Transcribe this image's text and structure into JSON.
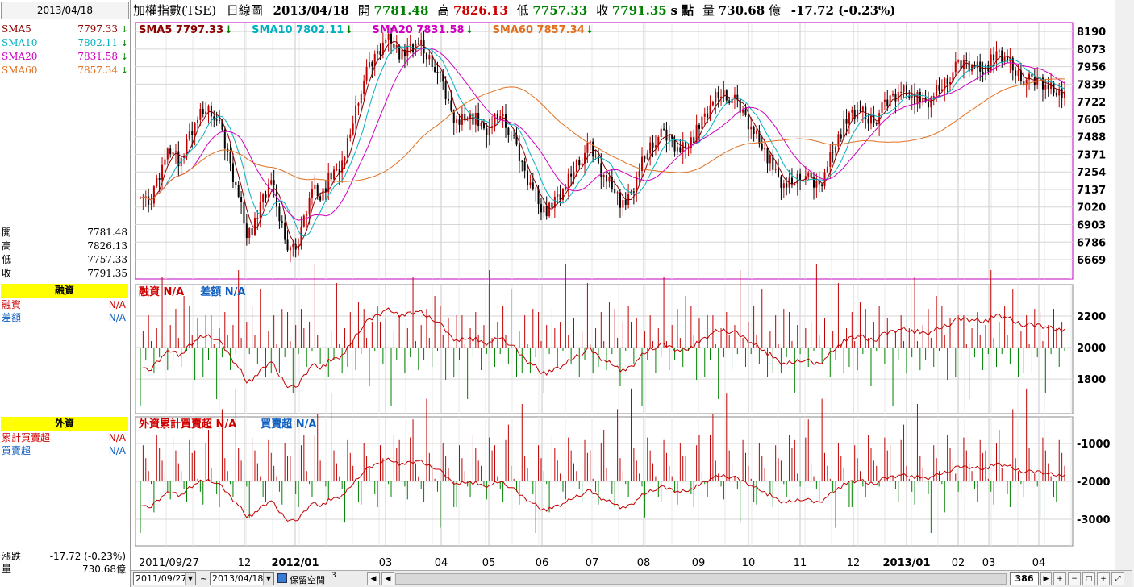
{
  "left_panel": {
    "date": "2013/04/18",
    "sma": [
      {
        "name": "SMA5",
        "value": "7797.33",
        "color": "#8b0000"
      },
      {
        "name": "SMA10",
        "value": "7802.11",
        "color": "#00b0c0"
      },
      {
        "name": "SMA20",
        "value": "7831.58",
        "color": "#d000c0"
      },
      {
        "name": "SMA60",
        "value": "7857.34",
        "color": "#e07020"
      }
    ],
    "ohlc": [
      {
        "name": "開",
        "value": "7781.48"
      },
      {
        "name": "高",
        "value": "7826.13"
      },
      {
        "name": "低",
        "value": "7757.33"
      },
      {
        "name": "收",
        "value": "7791.35"
      }
    ],
    "margin": {
      "header": "融資",
      "rows": [
        {
          "name": "融資",
          "value": "N/A",
          "color": "#d00000"
        },
        {
          "name": "差額",
          "value": "N/A",
          "color": "#1060c0"
        }
      ]
    },
    "foreign": {
      "header": "外資",
      "rows": [
        {
          "name": "累計買賣超",
          "value": "N/A",
          "color": "#d00000"
        },
        {
          "name": "買賣超",
          "value": "N/A",
          "color": "#1060c0"
        }
      ]
    },
    "bottom": [
      {
        "name": "漲跌",
        "value": "-17.72 (-0.23%)"
      },
      {
        "name": "量",
        "value": "730.68億"
      }
    ]
  },
  "header": {
    "title": "加權指數(TSE)",
    "chart_type": "日線圖",
    "date": "2013/04/18",
    "open_label": "開",
    "open": "7781.48",
    "high_label": "高",
    "high": "7826.13",
    "low_label": "低",
    "low": "7757.33",
    "close_label": "收",
    "close": "7791.35",
    "unit": "s 點",
    "volume_label": "量",
    "volume": "730.68",
    "volume_unit": "億",
    "change": "-17.72 (-0.23%)"
  },
  "chart_data": {
    "type": "line",
    "price_panel": {
      "legend": [
        {
          "label": "SMA5",
          "value": "7797.33",
          "color": "#8b0000"
        },
        {
          "label": "SMA10",
          "value": "7802.11",
          "color": "#00b0c0"
        },
        {
          "label": "SMA20",
          "value": "7831.58",
          "color": "#d000c0"
        },
        {
          "label": "SMA60",
          "value": "7857.34",
          "color": "#e07020"
        }
      ],
      "y_ticks": [
        "8190",
        "8073",
        "7956",
        "7839",
        "7722",
        "7605",
        "7488",
        "7371",
        "7254",
        "7137",
        "7020",
        "6903",
        "6786",
        "6669"
      ],
      "ylim": [
        6540,
        8250
      ],
      "close_path": [
        7130,
        7000,
        7200,
        7350,
        7420,
        7300,
        7500,
        7600,
        7680,
        7650,
        7500,
        7300,
        7100,
        6850,
        6900,
        7080,
        7200,
        6950,
        6780,
        6700,
        6950,
        7150,
        7100,
        7200,
        7250,
        7350,
        7600,
        7820,
        7950,
        8050,
        8150,
        8120,
        8020,
        8080,
        8110,
        8030,
        7970,
        7820,
        7650,
        7580,
        7650,
        7600,
        7520,
        7560,
        7650,
        7550,
        7400,
        7250,
        7150,
        7020,
        7000,
        7080,
        7150,
        7280,
        7360,
        7420,
        7300,
        7200,
        7150,
        7020,
        7100,
        7260,
        7400,
        7480,
        7500,
        7460,
        7400,
        7450,
        7520,
        7620,
        7720,
        7780,
        7760,
        7700,
        7620,
        7520,
        7440,
        7320,
        7200,
        7150,
        7200,
        7250,
        7180,
        7160,
        7300,
        7460,
        7560,
        7640,
        7660,
        7600,
        7620,
        7700,
        7760,
        7800,
        7780,
        7740,
        7700,
        7760,
        7830,
        7900,
        7960,
        7980,
        7960,
        7940,
        7990,
        8040,
        7990,
        7920,
        7880,
        7850,
        7870,
        7820,
        7800,
        7790
      ]
    },
    "margin_panel": {
      "legend": [
        {
          "label": "融資",
          "value": "N/A",
          "color": "#d00000"
        },
        {
          "label": "差額",
          "value": "N/A",
          "color": "#1060c0"
        }
      ],
      "y_ticks": [
        "2200",
        "2000",
        "1800"
      ],
      "ylim": [
        1580,
        2400
      ]
    },
    "foreign_panel": {
      "legend": [
        {
          "label": "外資累計買賣超",
          "value": "N/A",
          "color": "#d00000"
        },
        {
          "label": "買賣超",
          "value": "N/A",
          "color": "#1060c0"
        }
      ],
      "y_ticks": [
        "-1000",
        "-2000",
        "-3000"
      ],
      "ylim": [
        -3700,
        -300
      ]
    },
    "x_ticks": [
      "2011/09/27",
      "12",
      "2012/01",
      "03",
      "04",
      "05",
      "06",
      "07",
      "08",
      "09",
      "10",
      "11",
      "12",
      "2013/01",
      "02",
      "03",
      "04"
    ]
  },
  "toolbar": {
    "start_date": "2011/09/27",
    "tilde": "~",
    "end_date": "2013/04/18",
    "reserve_label": "保留空間",
    "reserve_value": "3",
    "count": "386"
  }
}
